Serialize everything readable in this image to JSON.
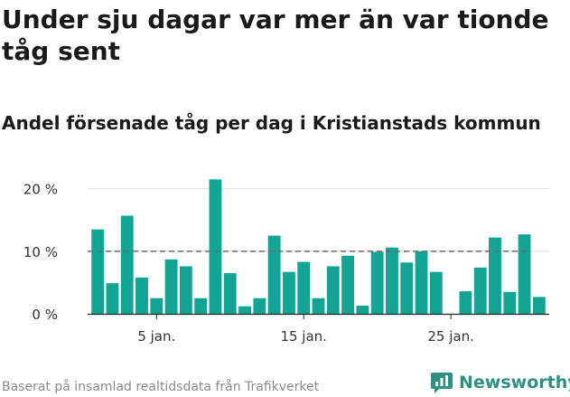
{
  "title": "Under sju dagar var mer än var tionde tåg sent",
  "subtitle": "Andel försenade tåg per dag i Kristianstads kommun",
  "source": "Baserat på insamlad realtidsdata från Trafikverket",
  "brand": {
    "name": "Newsworthy",
    "icon": "newsworthy-logo-icon",
    "color": "#2f8f83"
  },
  "chart_data": {
    "type": "bar",
    "x": [
      1,
      2,
      3,
      4,
      5,
      6,
      7,
      8,
      9,
      10,
      11,
      12,
      13,
      14,
      15,
      16,
      17,
      18,
      19,
      20,
      21,
      22,
      23,
      24,
      25,
      26,
      27,
      28,
      29,
      30,
      31
    ],
    "values": [
      13.5,
      4.9,
      15.7,
      5.8,
      2.5,
      8.7,
      7.6,
      2.5,
      21.5,
      6.5,
      1.2,
      2.5,
      12.5,
      6.7,
      8.3,
      2.5,
      7.6,
      9.3,
      1.3,
      9.9,
      10.6,
      8.2,
      10.0,
      6.7,
      0,
      3.6,
      7.4,
      12.2,
      3.5,
      12.7,
      2.7
    ],
    "ylim": [
      0,
      23
    ],
    "yticks": [
      0,
      10,
      20
    ],
    "ytick_labels": [
      "0 %",
      "10 %",
      "20 %"
    ],
    "xticks": [
      5,
      15,
      25
    ],
    "xtick_labels": [
      "5 jan.",
      "15 jan.",
      "25 jan."
    ],
    "reference_line": 10,
    "grid": true,
    "bar_color": "#12a594"
  }
}
